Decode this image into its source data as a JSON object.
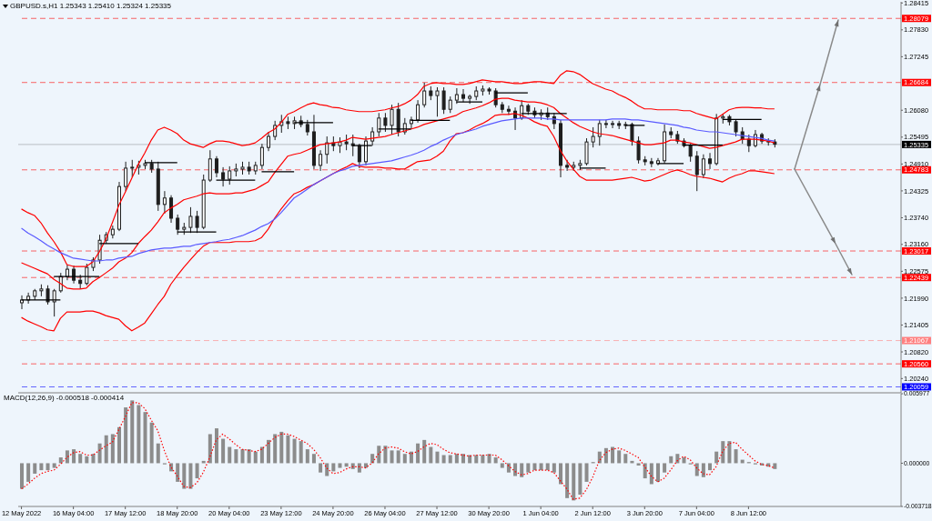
{
  "chart_data": [
    {
      "type": "candlestick",
      "title": "GBPUSD.s,H1 1.25343 1.25410 1.25324 1.25335",
      "color": "#1e1e1e",
      "categories": [
        null,
        null,
        null,
        null,
        null,
        null,
        null,
        null,
        null,
        null,
        null,
        null,
        null,
        null,
        null,
        null,
        null,
        null,
        null,
        null,
        null,
        null,
        null,
        null,
        null,
        null,
        null,
        null,
        null,
        null,
        null,
        null,
        null,
        null,
        null,
        null,
        null,
        null,
        null,
        null,
        null,
        null,
        null,
        null,
        null,
        null,
        null,
        null,
        null,
        null,
        null,
        null,
        null,
        null,
        null,
        null,
        null,
        null,
        null,
        null,
        null,
        null,
        null,
        null,
        null,
        null,
        null,
        null,
        null,
        null,
        null,
        null,
        null,
        null,
        null,
        null,
        null,
        null,
        null,
        null,
        null,
        null,
        null,
        null,
        null,
        null,
        null,
        null,
        null,
        null,
        null,
        null,
        null,
        null,
        null,
        null,
        null,
        null,
        null,
        null,
        null,
        null,
        null,
        null,
        null,
        null,
        null,
        null,
        null,
        null,
        null,
        null,
        null,
        null,
        null,
        null,
        null,
        null,
        null,
        null,
        null,
        null,
        null,
        null,
        null,
        null,
        null,
        null,
        null,
        null,
        null,
        null,
        null,
        null,
        null,
        null
      ],
      "ohlc": [
        [
          1.2189,
          1.2205,
          1.2175,
          1.2195
        ],
        [
          1.2195,
          1.2211,
          1.2187,
          1.2203
        ],
        [
          1.2203,
          1.2219,
          1.2195,
          1.2215
        ],
        [
          1.2215,
          1.2229,
          1.2203,
          1.2219
        ],
        [
          1.2219,
          1.2227,
          1.2185,
          1.2191
        ],
        [
          1.2191,
          1.2219,
          1.2159,
          1.2215
        ],
        [
          1.2215,
          1.2254,
          1.2211,
          1.2246
        ],
        [
          1.2246,
          1.2272,
          1.2238,
          1.2262
        ],
        [
          1.2262,
          1.227,
          1.2231,
          1.2238
        ],
        [
          1.2238,
          1.225,
          1.2219,
          1.2231
        ],
        [
          1.2231,
          1.2274,
          1.2227,
          1.2266
        ],
        [
          1.2266,
          1.2288,
          1.2258,
          1.2282
        ],
        [
          1.2282,
          1.2337,
          1.2274,
          1.2325
        ],
        [
          1.2325,
          1.2343,
          1.2318,
          1.2337
        ],
        [
          1.2337,
          1.2357,
          1.2329,
          1.2349
        ],
        [
          1.2349,
          1.2452,
          1.2345,
          1.2442
        ],
        [
          1.2442,
          1.2496,
          1.2432,
          1.2482
        ],
        [
          1.2482,
          1.25,
          1.2462,
          1.2484
        ],
        [
          1.2484,
          1.2498,
          1.2468,
          1.2488
        ],
        [
          1.2488,
          1.25,
          1.248,
          1.2492
        ],
        [
          1.2492,
          1.25,
          1.2472,
          1.248
        ],
        [
          1.248,
          1.2496,
          1.2389,
          1.2403
        ],
        [
          1.2403,
          1.2432,
          1.2383,
          1.2417
        ],
        [
          1.2417,
          1.2423,
          1.2363,
          1.2373
        ],
        [
          1.2373,
          1.2381,
          1.2337,
          1.2349
        ],
        [
          1.2349,
          1.2363,
          1.2337,
          1.2353
        ],
        [
          1.2353,
          1.2397,
          1.2341,
          1.2377
        ],
        [
          1.2377,
          1.2389,
          1.2341,
          1.2353
        ],
        [
          1.2353,
          1.2468,
          1.2349,
          1.2456
        ],
        [
          1.2456,
          1.2521,
          1.2452,
          1.2502
        ],
        [
          1.2502,
          1.2508,
          1.2462,
          1.2472
        ],
        [
          1.2472,
          1.2484,
          1.2442,
          1.2458
        ],
        [
          1.2458,
          1.2486,
          1.2446,
          1.2476
        ],
        [
          1.2476,
          1.2492,
          1.2464,
          1.248
        ],
        [
          1.248,
          1.2496,
          1.2468,
          1.2484
        ],
        [
          1.2484,
          1.2496,
          1.2468,
          1.2476
        ],
        [
          1.2476,
          1.2496,
          1.2468,
          1.2488
        ],
        [
          1.2488,
          1.2535,
          1.248,
          1.2527
        ],
        [
          1.2527,
          1.2561,
          1.2519,
          1.2551
        ],
        [
          1.2551,
          1.2585,
          1.2543,
          1.2575
        ],
        [
          1.2575,
          1.2598,
          1.2559,
          1.2583
        ],
        [
          1.2583,
          1.2594,
          1.2567,
          1.2579
        ],
        [
          1.2579,
          1.2594,
          1.2567,
          1.2585
        ],
        [
          1.2585,
          1.2596,
          1.2571,
          1.2577
        ],
        [
          1.2577,
          1.2587,
          1.2553,
          1.2561
        ],
        [
          1.2561,
          1.2598,
          1.248,
          1.2488
        ],
        [
          1.2488,
          1.2521,
          1.2476,
          1.2512
        ],
        [
          1.2512,
          1.2551,
          1.2492,
          1.2537
        ],
        [
          1.2537,
          1.2551,
          1.2519,
          1.2531
        ],
        [
          1.2531,
          1.2549,
          1.2515,
          1.2539
        ],
        [
          1.2539,
          1.2555,
          1.2521,
          1.2535
        ],
        [
          1.2535,
          1.2555,
          1.2508,
          1.2531
        ],
        [
          1.2531,
          1.2535,
          1.2482,
          1.2496
        ],
        [
          1.2496,
          1.2551,
          1.2488,
          1.2541
        ],
        [
          1.2541,
          1.2571,
          1.2531,
          1.2561
        ],
        [
          1.2561,
          1.2602,
          1.2551,
          1.2591
        ],
        [
          1.2591,
          1.2602,
          1.2561,
          1.2575
        ],
        [
          1.2575,
          1.262,
          1.2555,
          1.261
        ],
        [
          1.261,
          1.2624,
          1.2551,
          1.2561
        ],
        [
          1.2561,
          1.2591,
          1.2555,
          1.2579
        ],
        [
          1.2579,
          1.2594,
          1.2567,
          1.2587
        ],
        [
          1.2587,
          1.263,
          1.2581,
          1.262
        ],
        [
          1.262,
          1.2668,
          1.2614,
          1.265
        ],
        [
          1.265,
          1.266,
          1.263,
          1.264
        ],
        [
          1.264,
          1.2658,
          1.2594,
          1.265
        ],
        [
          1.265,
          1.2658,
          1.26,
          1.261
        ],
        [
          1.261,
          1.2638,
          1.2602,
          1.263
        ],
        [
          1.263,
          1.2656,
          1.2622,
          1.2642
        ],
        [
          1.2642,
          1.2654,
          1.2626,
          1.2634
        ],
        [
          1.2634,
          1.2642,
          1.2622,
          1.2638
        ],
        [
          1.2638,
          1.266,
          1.263,
          1.265
        ],
        [
          1.265,
          1.2662,
          1.264,
          1.2654
        ],
        [
          1.2654,
          1.2658,
          1.2642,
          1.265
        ],
        [
          1.265,
          1.2656,
          1.2614,
          1.262
        ],
        [
          1.262,
          1.2626,
          1.2602,
          1.261
        ],
        [
          1.261,
          1.2618,
          1.2598,
          1.2606
        ],
        [
          1.2606,
          1.2614,
          1.2565,
          1.2591
        ],
        [
          1.2591,
          1.263,
          1.2587,
          1.2618
        ],
        [
          1.2618,
          1.2622,
          1.2598,
          1.2606
        ],
        [
          1.2606,
          1.2614,
          1.2591,
          1.2598
        ],
        [
          1.2598,
          1.261,
          1.2587,
          1.2602
        ],
        [
          1.2602,
          1.2614,
          1.2587,
          1.2594
        ],
        [
          1.2594,
          1.2602,
          1.2567,
          1.2579
        ],
        [
          1.2579,
          1.2587,
          1.2462,
          1.2488
        ],
        [
          1.2488,
          1.25,
          1.2476,
          1.2484
        ],
        [
          1.2484,
          1.2496,
          1.2476,
          1.2488
        ],
        [
          1.2488,
          1.25,
          1.2478,
          1.2492
        ],
        [
          1.2492,
          1.2547,
          1.2488,
          1.2539
        ],
        [
          1.2539,
          1.2571,
          1.2527,
          1.2551
        ],
        [
          1.2551,
          1.2587,
          1.2531,
          1.2579
        ],
        [
          1.2579,
          1.2587,
          1.2569,
          1.2577
        ],
        [
          1.2577,
          1.2585,
          1.2569,
          1.2579
        ],
        [
          1.2579,
          1.2585,
          1.2567,
          1.2575
        ],
        [
          1.2575,
          1.2583,
          1.2567,
          1.2577
        ],
        [
          1.2577,
          1.2581,
          1.2531,
          1.2541
        ],
        [
          1.2541,
          1.2551,
          1.2492,
          1.25
        ],
        [
          1.25,
          1.2508,
          1.2488,
          1.2496
        ],
        [
          1.2496,
          1.2504,
          1.2484,
          1.2492
        ],
        [
          1.2492,
          1.2504,
          1.2488,
          1.2498
        ],
        [
          1.2498,
          1.2577,
          1.2492,
          1.2561
        ],
        [
          1.2561,
          1.2571,
          1.2547,
          1.2555
        ],
        [
          1.2555,
          1.2563,
          1.2535,
          1.2541
        ],
        [
          1.2541,
          1.2547,
          1.2527,
          1.2531
        ],
        [
          1.2531,
          1.2535,
          1.2496,
          1.2508
        ],
        [
          1.2508,
          1.2519,
          1.2432,
          1.2468
        ],
        [
          1.2468,
          1.2512,
          1.246,
          1.2502
        ],
        [
          1.2502,
          1.2515,
          1.248,
          1.2492
        ],
        [
          1.2492,
          1.26,
          1.2488,
          1.2591
        ],
        [
          1.2591,
          1.26,
          1.2579,
          1.2594
        ],
        [
          1.2594,
          1.2598,
          1.2575,
          1.2583
        ],
        [
          1.2583,
          1.2587,
          1.2551,
          1.2561
        ],
        [
          1.2561,
          1.2571,
          1.2535,
          1.2545
        ],
        [
          1.2545,
          1.2555,
          1.2517,
          1.2531
        ],
        [
          1.2531,
          1.2565,
          1.2527,
          1.2555
        ],
        [
          1.2555,
          1.2559,
          1.2535,
          1.2541
        ],
        [
          1.2541,
          1.2547,
          1.2531,
          1.2539
        ],
        [
          1.2539,
          1.2545,
          1.2527,
          1.2534
        ],
        null,
        null,
        null,
        null,
        null,
        null,
        null,
        null,
        null,
        null,
        null,
        null,
        null,
        null,
        null,
        null,
        null,
        null,
        null
      ],
      "series": [
        {
          "type": "line",
          "color": "#ff0000",
          "values": [
            1.2393,
            1.2385,
            1.2379,
            1.2363,
            1.2341,
            1.2322,
            1.23,
            1.2272,
            1.2268,
            1.2268,
            1.2268,
            1.2278,
            1.23,
            1.2327,
            1.2363,
            1.2401,
            1.243,
            1.246,
            1.249,
            1.2515,
            1.2543,
            1.2565,
            1.2571,
            1.2565,
            1.2557,
            1.2543,
            1.2535,
            1.2531,
            1.2527,
            1.2535,
            1.2541,
            1.2541,
            1.2539,
            1.2535,
            1.2531,
            1.2533,
            1.2537,
            1.2547,
            1.2559,
            1.2567,
            1.2581,
            1.2599,
            1.2605,
            1.2613,
            1.262,
            1.2624,
            1.262,
            1.2618,
            1.2614,
            1.2613,
            1.2609,
            1.2607,
            1.2605,
            1.2605,
            1.2605,
            1.2607,
            1.2609,
            1.2613,
            1.2616,
            1.2622,
            1.263,
            1.2642,
            1.266,
            1.2666,
            1.2668,
            1.2666,
            1.2666,
            1.2664,
            1.2664,
            1.2666,
            1.267,
            1.2674,
            1.2672,
            1.267,
            1.267,
            1.2668,
            1.2666,
            1.2666,
            1.2668,
            1.267,
            1.267,
            1.2668,
            1.2666,
            1.2684,
            1.2694,
            1.2692,
            1.2686,
            1.2676,
            1.2666,
            1.266,
            1.2654,
            1.265,
            1.2642,
            1.2636,
            1.2628,
            1.2618,
            1.2611,
            1.2611,
            1.2609,
            1.2609,
            1.2609,
            1.2609,
            1.2607,
            1.2607,
            1.2601,
            1.2597,
            1.2593,
            1.2589,
            1.2599,
            1.2609,
            1.2613,
            1.2614,
            1.2614,
            1.2613,
            1.2613,
            1.2611,
            1.2611,
            null,
            null,
            null,
            null,
            null,
            null,
            null,
            null,
            null,
            null,
            null,
            null,
            null,
            null,
            null,
            null,
            null,
            null,
            null
          ]
        },
        {
          "type": "line",
          "color": "#ff0000",
          "values": [
            1.2276,
            1.227,
            1.2264,
            1.2258,
            1.2252,
            1.224,
            1.2231,
            1.2221,
            1.2219,
            1.2219,
            1.2221,
            1.2235,
            1.2244,
            1.2254,
            1.2264,
            1.2278,
            1.2286,
            1.2298,
            1.2318,
            1.2333,
            1.2347,
            1.2365,
            1.2385,
            1.2395,
            1.2403,
            1.2413,
            1.2417,
            1.2421,
            1.2426,
            1.2428,
            1.2426,
            1.2426,
            1.2426,
            1.2428,
            1.2428,
            1.2432,
            1.2436,
            1.2444,
            1.2452,
            1.2472,
            1.249,
            1.2508,
            1.2512,
            1.2515,
            1.2521,
            1.2527,
            1.2533,
            1.2535,
            1.2537,
            1.2539,
            1.2543,
            1.2549,
            1.2547,
            1.2545,
            1.2547,
            1.2549,
            1.2551,
            1.2555,
            1.2559,
            1.2563,
            1.2567,
            1.2571,
            1.2577,
            1.2581,
            1.2585,
            1.2589,
            1.2593,
            1.2597,
            1.2605,
            1.2609,
            1.2613,
            1.2618,
            1.2624,
            1.2632,
            1.2634,
            1.2634,
            1.263,
            1.2628,
            1.2626,
            1.2626,
            1.2624,
            1.262,
            1.2614,
            1.2601,
            1.2591,
            1.2581,
            1.2573,
            1.2567,
            1.2561,
            1.2557,
            1.2555,
            1.2553,
            1.2549,
            1.2545,
            1.2541,
            1.2537,
            1.2533,
            1.2533,
            1.2535,
            1.2537,
            1.2543,
            1.2543,
            1.2539,
            1.2537,
            1.2533,
            1.2529,
            1.2525,
            1.2527,
            1.2531,
            1.2535,
            1.2539,
            1.2545,
            1.2545,
            1.2545,
            1.2543,
            1.2541,
            1.2537,
            null,
            null,
            null,
            null,
            null,
            null,
            null,
            null,
            null,
            null,
            null,
            null,
            null,
            null,
            null,
            null,
            null,
            null,
            null
          ]
        },
        {
          "type": "line",
          "color": "#ff0000",
          "values": [
            1.2157,
            1.2149,
            1.2143,
            1.2137,
            1.213,
            1.2128,
            1.2155,
            1.2169,
            1.2169,
            1.2169,
            1.2171,
            1.2171,
            1.2167,
            1.2161,
            1.2157,
            1.2153,
            1.2139,
            1.2128,
            1.2136,
            1.2145,
            1.2165,
            1.2185,
            1.2203,
            1.2229,
            1.2248,
            1.2266,
            1.2282,
            1.2298,
            1.2312,
            1.232,
            1.232,
            1.232,
            1.232,
            1.2322,
            1.2322,
            1.2322,
            1.2324,
            1.2331,
            1.2349,
            1.2373,
            1.2393,
            1.2411,
            1.2426,
            1.2432,
            1.244,
            1.2446,
            1.2454,
            1.2462,
            1.247,
            1.2478,
            1.2484,
            1.2492,
            1.2486,
            1.2484,
            1.2484,
            1.2484,
            1.2482,
            1.2482,
            1.248,
            1.248,
            1.2488,
            1.2496,
            1.2498,
            1.25,
            1.2508,
            1.2519,
            1.2541,
            1.2557,
            1.2559,
            1.2565,
            1.2573,
            1.2579,
            1.2587,
            1.2597,
            1.2599,
            1.2599,
            1.2601,
            1.2597,
            1.2591,
            1.2583,
            1.2577,
            1.2573,
            1.2551,
            1.2521,
            1.2498,
            1.248,
            1.2464,
            1.2456,
            1.2456,
            1.2456,
            1.2456,
            1.2456,
            1.2458,
            1.246,
            1.2462,
            1.2458,
            1.2454,
            1.2456,
            1.2462,
            1.2468,
            1.2474,
            1.2478,
            1.2474,
            1.2468,
            1.2464,
            1.2462,
            1.246,
            1.2456,
            1.2452,
            1.246,
            1.2466,
            1.247,
            1.2476,
            1.2476,
            1.2474,
            1.2472,
            1.247,
            null,
            null,
            null,
            null,
            null,
            null,
            null,
            null,
            null,
            null,
            null,
            null,
            null,
            null,
            null,
            null,
            null,
            null,
            null
          ]
        },
        {
          "type": "line",
          "color": "#5a5aff",
          "values": [
            1.2351,
            1.2341,
            1.2333,
            1.2324,
            1.2314,
            1.2306,
            1.2298,
            1.2292,
            1.2286,
            1.2284,
            1.2282,
            1.228,
            1.228,
            1.2282,
            1.2282,
            1.2286,
            1.2288,
            1.229,
            1.2296,
            1.23,
            1.2304,
            1.2306,
            1.2308,
            1.2308,
            1.231,
            1.2312,
            1.2312,
            1.2316,
            1.2318,
            1.232,
            1.2322,
            1.2325,
            1.2327,
            1.2331,
            1.2335,
            1.2341,
            1.2347,
            1.2355,
            1.2361,
            1.2371,
            1.2385,
            1.2401,
            1.2417,
            1.2426,
            1.2436,
            1.2446,
            1.2454,
            1.2462,
            1.247,
            1.2476,
            1.248,
            1.2486,
            1.2488,
            1.249,
            1.2492,
            1.2494,
            1.2496,
            1.2498,
            1.2502,
            1.2506,
            1.251,
            1.2515,
            1.2521,
            1.2529,
            1.2535,
            1.2543,
            1.2549,
            1.2555,
            1.2559,
            1.2563,
            1.2567,
            1.2573,
            1.2577,
            1.2581,
            1.2585,
            1.2587,
            1.2589,
            1.2591,
            1.2591,
            1.2591,
            1.2591,
            1.2589,
            1.2589,
            1.2587,
            1.2587,
            1.2587,
            1.2587,
            1.2587,
            1.2587,
            1.2587,
            1.2587,
            1.2589,
            1.2589,
            1.2589,
            1.2587,
            1.2587,
            1.2585,
            1.2583,
            1.2581,
            1.2579,
            1.2577,
            1.2575,
            1.2571,
            1.2569,
            1.2565,
            1.2563,
            1.2561,
            1.2561,
            1.2559,
            1.2557,
            1.2555,
            1.2553,
            1.2551,
            1.2549,
            1.2547,
            1.2543,
            1.2541,
            null,
            null,
            null,
            null,
            null,
            null,
            null,
            null,
            null,
            null,
            null,
            null,
            null,
            null,
            null,
            null,
            null,
            null,
            null
          ]
        },
        {
          "type": "line",
          "color": "#000000",
          "values": [
            1.2195,
            1.2195,
            1.2195,
            1.2195,
            1.2195,
            1.2195,
            1.2195,
            null,
            null,
            null,
            null,
            null,
            1.2318,
            1.2318,
            1.2318,
            1.2318,
            1.2318,
            1.2318,
            1.2318,
            null,
            null,
            null,
            null,
            null,
            1.2343,
            1.2343,
            1.2343,
            1.2343,
            1.2343,
            1.2343,
            1.2343,
            null,
            null,
            null,
            null,
            null,
            null,
            1.2474,
            1.2474,
            1.2474,
            1.2474,
            1.2474,
            1.2474,
            null,
            null,
            null,
            null,
            null,
            null,
            null,
            null,
            1.2531,
            1.2531,
            1.2531,
            1.2531,
            null,
            null,
            null,
            null,
            null,
            1.2586,
            1.2586,
            1.2586,
            1.2586,
            1.2586,
            1.2586,
            1.2586,
            null,
            null,
            null,
            null,
            null,
            null,
            1.2646,
            1.2646,
            1.2646,
            1.2646,
            1.2646,
            1.2646,
            null,
            null,
            null,
            null,
            null,
            null,
            null,
            1.2482,
            1.2482,
            1.2482,
            1.2482,
            1.2482,
            null,
            null,
            null,
            null,
            null,
            null,
            null,
            1.2492,
            1.2492,
            1.2492,
            1.2492,
            1.2492,
            null,
            null,
            null,
            null,
            null,
            1.2588,
            1.2588,
            1.2588,
            1.2588,
            1.2588,
            1.2588,
            1.2588,
            null,
            null,
            null,
            null,
            null,
            null,
            null,
            null,
            null,
            null,
            null,
            null,
            null,
            null,
            null,
            null,
            null,
            null,
            null,
            null,
            null
          ]
        },
        {
          "type": "line",
          "color": "#000000",
          "values": [
            null,
            null,
            null,
            null,
            null,
            1.2246,
            1.2246,
            1.2246,
            1.2246,
            1.2246,
            1.2246,
            1.2246,
            1.2246,
            null,
            null,
            null,
            null,
            null,
            null,
            1.2494,
            1.2494,
            1.2494,
            1.2494,
            1.2494,
            1.2494,
            null,
            null,
            null,
            null,
            null,
            1.2456,
            1.2456,
            1.2456,
            1.2456,
            1.2456,
            1.2456,
            1.2456,
            null,
            null,
            null,
            null,
            null,
            1.2581,
            1.2581,
            1.2581,
            1.2581,
            1.2581,
            1.2581,
            1.2581,
            null,
            null,
            null,
            null,
            null,
            null,
            1.2567,
            1.2567,
            1.2567,
            1.2567,
            1.2567,
            1.2567,
            null,
            null,
            null,
            null,
            null,
            null,
            1.2626,
            1.2626,
            1.2626,
            1.2626,
            1.2626,
            null,
            null,
            null,
            null,
            null,
            1.2601,
            1.2601,
            1.2601,
            1.2601,
            1.2601,
            1.2601,
            1.2601,
            1.2601,
            null,
            null,
            null,
            null,
            null,
            null,
            null,
            null,
            1.2575,
            1.2575,
            1.2575,
            1.2575,
            null,
            null,
            null,
            null,
            null,
            1.2532,
            1.2532,
            1.2532,
            1.2532,
            1.2532,
            1.2532,
            1.2532,
            null,
            null,
            null,
            null,
            null,
            null,
            null,
            null,
            null,
            null,
            null,
            null,
            null,
            null,
            null,
            null,
            null,
            null,
            null,
            null,
            null,
            null,
            null,
            null,
            null,
            null,
            null
          ]
        }
      ],
      "ylim": [
        1.1993,
        1.2844
      ],
      "yticks": [
        {
          "value": 1.2024,
          "label": "1.20240"
        },
        {
          "value": 1.2082,
          "label": "1.20820"
        },
        1.21405,
        {
          "value": 1.2199,
          "label": "1.21990"
        },
        1.22575,
        {
          "value": 1.2316,
          "label": "1.23160"
        },
        {
          "value": 1.2374,
          "label": "1.23740"
        },
        1.24325,
        {
          "value": 1.2491,
          "label": "1.24910"
        },
        1.25495,
        {
          "value": 1.2608,
          "label": "1.26080"
        },
        1.27245,
        {
          "value": 1.2783,
          "label": "1.27830"
        },
        1.28415
      ],
      "ref_lines": [
        {
          "axis": "y",
          "value": 1.28079,
          "label": "1.28079",
          "color": "#ff0000",
          "line_style": "dashed"
        },
        {
          "axis": "y",
          "value": 1.26684,
          "label": "1.26684",
          "color": "#ff0000",
          "line_style": "dashed"
        },
        {
          "axis": "y",
          "value": 1.25335,
          "label": "1.25335",
          "color": "#000000",
          "line_style": "solid"
        },
        {
          "axis": "y",
          "value": 1.24783,
          "label": "1.24783",
          "color": "#ff0000",
          "line_style": "dashed"
        },
        {
          "axis": "y",
          "value": 1.23017,
          "label": "1.23017",
          "color": "#ff0000",
          "line_style": "dashed"
        },
        {
          "axis": "y",
          "value": 1.22439,
          "label": "1.22439",
          "color": "#ff0000",
          "line_style": "dashed"
        },
        {
          "axis": "y",
          "value": 1.21067,
          "label": "1.21067",
          "color": "#ff8080",
          "line_style": "dashed"
        },
        {
          "axis": "y",
          "value": 1.2056,
          "label": "1.20560",
          "color": "#ff0000",
          "line_style": "dashed"
        },
        {
          "axis": "y",
          "value": 1.20059,
          "label": "1.20059",
          "color": "#0000ff",
          "line_style": "dashed"
        }
      ]
    },
    {
      "type": "bar",
      "title": "MACD(12,26,9) -0.000518 -0.000414",
      "categories": [
        "12 May 2022",
        null,
        null,
        null,
        null,
        null,
        null,
        null,
        "16 May 04:00",
        null,
        null,
        null,
        null,
        null,
        null,
        null,
        "17 May 12:00",
        null,
        null,
        null,
        null,
        null,
        null,
        null,
        "18 May 20:00",
        null,
        null,
        null,
        null,
        null,
        null,
        null,
        "20 May 04:00",
        null,
        null,
        null,
        null,
        null,
        null,
        null,
        "23 May 12:00",
        null,
        null,
        null,
        null,
        null,
        null,
        null,
        "24 May 20:00",
        null,
        null,
        null,
        null,
        null,
        null,
        null,
        "26 May 04:00",
        null,
        null,
        null,
        null,
        null,
        null,
        null,
        "27 May 12:00",
        null,
        null,
        null,
        null,
        null,
        null,
        null,
        "30 May 20:00",
        null,
        null,
        null,
        null,
        null,
        null,
        null,
        "1 Jun 04:00",
        null,
        null,
        null,
        null,
        null,
        null,
        null,
        "2 Jun 12:00",
        null,
        null,
        null,
        null,
        null,
        null,
        null,
        "3 Jun 20:00",
        null,
        null,
        null,
        null,
        null,
        null,
        null,
        "7 Jun 04:00",
        null,
        null,
        null,
        null,
        null,
        null,
        null,
        "8 Jun 12:00",
        null,
        null,
        null,
        null,
        null,
        null,
        null,
        null,
        null,
        null,
        null,
        null,
        null,
        null,
        null,
        null,
        null,
        null,
        null,
        null,
        null,
        null,
        null
      ],
      "series": [
        {
          "type": "bar",
          "color": "#8c8c8c",
          "values": [
            -0.0022,
            -0.0016,
            -0.0009,
            -0.0006,
            -0.0006,
            -0.0004,
            0.0005,
            0.0011,
            0.0012,
            0.0008,
            0.0006,
            0.0008,
            0.0017,
            0.0024,
            0.0025,
            0.0031,
            0.0048,
            0.0054,
            0.005,
            0.0044,
            0.0035,
            0.0017,
            -0.0001,
            -0.0007,
            -0.0016,
            -0.0022,
            -0.0022,
            -0.0013,
            0.0002,
            0.0025,
            0.003,
            0.0021,
            0.0014,
            0.0012,
            0.0012,
            0.0012,
            0.001,
            0.0014,
            0.002,
            0.0025,
            0.0027,
            0.0024,
            0.0021,
            0.0019,
            0.0012,
            0.0008,
            -0.0008,
            -0.0011,
            -0.0007,
            -0.0004,
            -0.0003,
            -0.0005,
            -0.0008,
            -0.0004,
            0.0008,
            0.0015,
            0.0015,
            0.0011,
            0.0011,
            0.0008,
            0.001,
            0.0017,
            0.002,
            0.0014,
            0.001,
            0.0007,
            0.0007,
            0.0008,
            0.0008,
            0.0007,
            0.0007,
            0.0007,
            0.0008,
            0.0005,
            -0.0004,
            -0.0008,
            -0.0011,
            -0.0012,
            -0.0008,
            -0.0006,
            -0.0006,
            -0.0006,
            -0.0008,
            -0.0018,
            -0.003,
            -0.0032,
            -0.0027,
            -0.0016,
            0.0001,
            0.001,
            0.0013,
            0.0014,
            0.0011,
            0.0008,
            0.0002,
            -0.0002,
            -0.0013,
            -0.0018,
            -0.0016,
            -0.0008,
            0.0006,
            0.0008,
            0.0005,
            -0.0001,
            -0.0011,
            -0.0012,
            -0.0006,
            0.001,
            0.0019,
            0.0019,
            0.0012,
            0.0003,
            0.0001,
            -0.0001,
            -0.0002,
            -0.0003,
            -0.0005,
            null,
            null,
            null,
            null,
            null,
            null,
            null,
            null,
            null,
            null,
            null,
            null,
            null,
            null,
            null,
            null,
            null,
            null,
            null
          ]
        },
        {
          "type": "line",
          "color": "#ff0000",
          "line_style": "dotted",
          "values": [
            -0.0022,
            -0.0018,
            -0.0013,
            -0.0009,
            -0.0007,
            -0.0006,
            -0.0001,
            0.0005,
            0.0009,
            0.001,
            0.0007,
            0.0007,
            0.0011,
            0.0015,
            0.0018,
            0.0029,
            0.004,
            0.0052,
            0.0052,
            0.0047,
            0.0037,
            0.0028,
            0.0011,
            -0.0003,
            -0.0011,
            -0.002,
            -0.0021,
            -0.0017,
            -0.0008,
            0.0005,
            0.002,
            0.0025,
            0.0021,
            0.0016,
            0.0012,
            0.0011,
            0.001,
            0.0012,
            0.0017,
            0.0022,
            0.0025,
            0.0025,
            0.0023,
            0.002,
            0.0017,
            0.0012,
            0.0005,
            -0.0004,
            -0.0009,
            -0.0008,
            -0.0005,
            -0.0003,
            -0.0003,
            -0.0004,
            0,
            0.0008,
            0.0013,
            0.0014,
            0.0013,
            0.001,
            0.0008,
            0.001,
            0.0014,
            0.0017,
            0.0016,
            0.0012,
            0.0009,
            0.0008,
            0.0007,
            0.0006,
            0.0007,
            0.0007,
            0.0007,
            0.0007,
            0.0003,
            -0.0002,
            -0.0007,
            -0.001,
            -0.0009,
            -0.0006,
            -0.0006,
            -0.0006,
            -0.0008,
            -0.0015,
            -0.0022,
            -0.0031,
            -0.003,
            -0.0023,
            -0.0012,
            0.0002,
            0.0009,
            0.0012,
            0.0013,
            0.0011,
            0.0008,
            0.0005,
            -0.0003,
            -0.0011,
            -0.0016,
            -0.0013,
            -0.0006,
            0.0002,
            0.0006,
            0.0003,
            -0.0004,
            -0.0009,
            -0.001,
            -0.0003,
            0.001,
            0.0017,
            0.0018,
            0.0012,
            0.0007,
            0.0002,
            -0.0001,
            -0.0002,
            -0.0004,
            null,
            null,
            null,
            null,
            null,
            null,
            null,
            null,
            null,
            null,
            null,
            null,
            null,
            null,
            null,
            null,
            null,
            null,
            null
          ]
        }
      ],
      "ylim": [
        -0.003718,
        0.005977
      ],
      "yticks": [
        -0.003718,
        {
          "value": 0,
          "label": "0.000000"
        },
        0.005977
      ]
    }
  ]
}
